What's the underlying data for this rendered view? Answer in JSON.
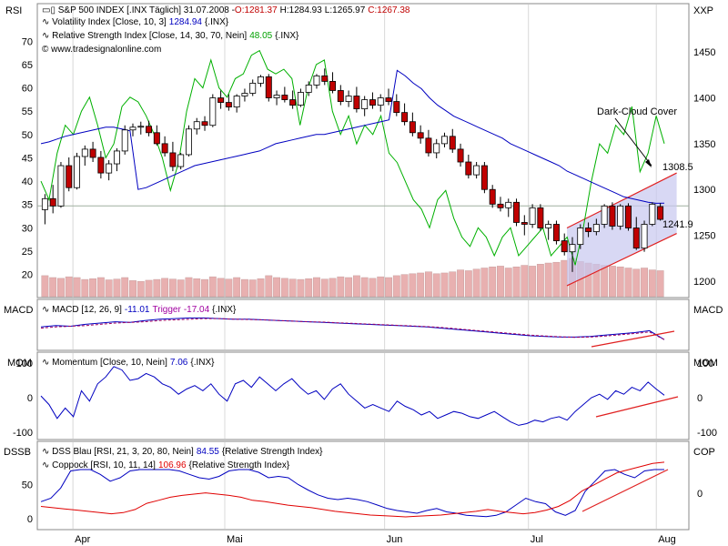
{
  "header": {
    "symbol": "S&P 500 INDEX [.INX  Täglich] 31.07.2008 -",
    "o": "O:1281.37",
    "h": "H:1284.93",
    "l": "L:1265.97",
    "c": "C:1267.38",
    "vol_label": "Volatility Index [Close, 10, 3]",
    "vol_value": "1284.94",
    "vol_suffix": "{.INX}",
    "rsi_label": "Relative Strength Index [Close, 14, 30, 70, Nein]",
    "rsi_value": "48.05",
    "rsi_suffix": "{.INX}",
    "website": "© www.tradesignalonline.com"
  },
  "panel_labels": {
    "main_left": "RSI",
    "main_right": "XXP",
    "macd_left": "MACD",
    "macd_right": "MACD",
    "mom_left": "MOM",
    "mom_right": "MOM",
    "dssb_left": "DSSB",
    "dssb_right": "COP"
  },
  "indicators": {
    "macd_label": "MACD [12, 26, 9]",
    "macd_value": "-11.01",
    "trigger_label": "Trigger",
    "trigger_value": "-17.04",
    "macd_suffix": "{.INX}",
    "mom_label": "Momentum [Close, 10, Nein]",
    "mom_value": "7.06",
    "mom_suffix": "{.INX}",
    "dss_label": "DSS Blau [RSI, 21, 3, 20, 80, Nein]",
    "dss_value": "84.55",
    "dss_suffix": "{Relative Strength Index}",
    "cop_label": "Coppock [RSI, 10, 11, 14]",
    "cop_value": "106.96",
    "cop_suffix": "{Relative Strength Index}"
  },
  "annotations": {
    "dark_cloud": "Dark-Cloud Cover",
    "upper_level": "1308.5",
    "lower_level": "1241.9"
  },
  "colors": {
    "up_candle": "#ffffff",
    "down_candle": "#c00000",
    "volatility": "#0000c0",
    "rsi": "#00b000",
    "volume": "#e8b0b0",
    "channel_fill": "#c8c8f0",
    "channel_line": "#e02020",
    "trendline": "#e02020",
    "dss": "#0000c0",
    "coppock": "#e00000"
  },
  "chart_data": {
    "type": "candlestick",
    "symbol": "S&P 500 INDEX [.INX  Täglich]",
    "x_tick_labels": [
      "Apr",
      "Mai",
      "Jun",
      "Jul",
      "Aug"
    ],
    "price_axis": {
      "ticks": [
        1200,
        1250,
        1300,
        1350,
        1400,
        1450
      ],
      "range": [
        1187,
        1477
      ]
    },
    "rsi_axis": {
      "ticks": [
        20,
        25,
        30,
        35,
        40,
        45,
        50,
        55,
        60,
        65,
        70
      ],
      "range": [
        16,
        73
      ]
    },
    "rsi_reference": 34.7,
    "candles": [
      {
        "o": 1278,
        "h": 1295,
        "l": 1262,
        "c": 1290
      },
      {
        "o": 1290,
        "h": 1305,
        "l": 1274,
        "c": 1282
      },
      {
        "o": 1282,
        "h": 1330,
        "l": 1280,
        "c": 1326
      },
      {
        "o": 1326,
        "h": 1335,
        "l": 1298,
        "c": 1302
      },
      {
        "o": 1302,
        "h": 1340,
        "l": 1300,
        "c": 1336
      },
      {
        "o": 1336,
        "h": 1348,
        "l": 1326,
        "c": 1344
      },
      {
        "o": 1344,
        "h": 1352,
        "l": 1330,
        "c": 1335
      },
      {
        "o": 1335,
        "h": 1342,
        "l": 1312,
        "c": 1318
      },
      {
        "o": 1318,
        "h": 1332,
        "l": 1310,
        "c": 1328
      },
      {
        "o": 1328,
        "h": 1345,
        "l": 1320,
        "c": 1342
      },
      {
        "o": 1342,
        "h": 1370,
        "l": 1338,
        "c": 1365
      },
      {
        "o": 1365,
        "h": 1372,
        "l": 1358,
        "c": 1368
      },
      {
        "o": 1368,
        "h": 1374,
        "l": 1360,
        "c": 1369
      },
      {
        "o": 1369,
        "h": 1375,
        "l": 1358,
        "c": 1362
      },
      {
        "o": 1362,
        "h": 1370,
        "l": 1348,
        "c": 1350
      },
      {
        "o": 1350,
        "h": 1358,
        "l": 1336,
        "c": 1340
      },
      {
        "o": 1340,
        "h": 1352,
        "l": 1320,
        "c": 1325
      },
      {
        "o": 1325,
        "h": 1340,
        "l": 1322,
        "c": 1338
      },
      {
        "o": 1338,
        "h": 1370,
        "l": 1336,
        "c": 1366
      },
      {
        "o": 1366,
        "h": 1378,
        "l": 1360,
        "c": 1374
      },
      {
        "o": 1374,
        "h": 1380,
        "l": 1364,
        "c": 1370
      },
      {
        "o": 1370,
        "h": 1404,
        "l": 1368,
        "c": 1400
      },
      {
        "o": 1400,
        "h": 1408,
        "l": 1388,
        "c": 1395
      },
      {
        "o": 1395,
        "h": 1404,
        "l": 1386,
        "c": 1390
      },
      {
        "o": 1390,
        "h": 1404,
        "l": 1384,
        "c": 1402
      },
      {
        "o": 1402,
        "h": 1410,
        "l": 1396,
        "c": 1405
      },
      {
        "o": 1405,
        "h": 1420,
        "l": 1402,
        "c": 1416
      },
      {
        "o": 1416,
        "h": 1425,
        "l": 1412,
        "c": 1423
      },
      {
        "o": 1423,
        "h": 1426,
        "l": 1396,
        "c": 1400
      },
      {
        "o": 1400,
        "h": 1408,
        "l": 1392,
        "c": 1403
      },
      {
        "o": 1403,
        "h": 1412,
        "l": 1395,
        "c": 1398
      },
      {
        "o": 1398,
        "h": 1408,
        "l": 1388,
        "c": 1392
      },
      {
        "o": 1392,
        "h": 1410,
        "l": 1390,
        "c": 1406
      },
      {
        "o": 1406,
        "h": 1418,
        "l": 1402,
        "c": 1414
      },
      {
        "o": 1414,
        "h": 1426,
        "l": 1410,
        "c": 1424
      },
      {
        "o": 1424,
        "h": 1432,
        "l": 1414,
        "c": 1418
      },
      {
        "o": 1418,
        "h": 1428,
        "l": 1405,
        "c": 1408
      },
      {
        "o": 1408,
        "h": 1414,
        "l": 1392,
        "c": 1396
      },
      {
        "o": 1396,
        "h": 1408,
        "l": 1390,
        "c": 1402
      },
      {
        "o": 1402,
        "h": 1412,
        "l": 1384,
        "c": 1388
      },
      {
        "o": 1388,
        "h": 1402,
        "l": 1380,
        "c": 1398
      },
      {
        "o": 1398,
        "h": 1406,
        "l": 1388,
        "c": 1392
      },
      {
        "o": 1392,
        "h": 1404,
        "l": 1385,
        "c": 1400
      },
      {
        "o": 1400,
        "h": 1410,
        "l": 1392,
        "c": 1396
      },
      {
        "o": 1396,
        "h": 1404,
        "l": 1380,
        "c": 1384
      },
      {
        "o": 1384,
        "h": 1394,
        "l": 1370,
        "c": 1374
      },
      {
        "o": 1374,
        "h": 1384,
        "l": 1358,
        "c": 1362
      },
      {
        "o": 1362,
        "h": 1370,
        "l": 1350,
        "c": 1356
      },
      {
        "o": 1356,
        "h": 1365,
        "l": 1336,
        "c": 1340
      },
      {
        "o": 1340,
        "h": 1355,
        "l": 1334,
        "c": 1350
      },
      {
        "o": 1350,
        "h": 1362,
        "l": 1346,
        "c": 1358
      },
      {
        "o": 1358,
        "h": 1366,
        "l": 1340,
        "c": 1344
      },
      {
        "o": 1344,
        "h": 1350,
        "l": 1325,
        "c": 1330
      },
      {
        "o": 1330,
        "h": 1338,
        "l": 1312,
        "c": 1316
      },
      {
        "o": 1316,
        "h": 1330,
        "l": 1312,
        "c": 1326
      },
      {
        "o": 1326,
        "h": 1330,
        "l": 1296,
        "c": 1300
      },
      {
        "o": 1300,
        "h": 1305,
        "l": 1280,
        "c": 1284
      },
      {
        "o": 1284,
        "h": 1292,
        "l": 1276,
        "c": 1280
      },
      {
        "o": 1280,
        "h": 1290,
        "l": 1270,
        "c": 1286
      },
      {
        "o": 1286,
        "h": 1290,
        "l": 1260,
        "c": 1264
      },
      {
        "o": 1264,
        "h": 1272,
        "l": 1250,
        "c": 1262
      },
      {
        "o": 1262,
        "h": 1284,
        "l": 1258,
        "c": 1280
      },
      {
        "o": 1280,
        "h": 1284,
        "l": 1255,
        "c": 1258
      },
      {
        "o": 1258,
        "h": 1266,
        "l": 1245,
        "c": 1262
      },
      {
        "o": 1262,
        "h": 1266,
        "l": 1240,
        "c": 1244
      },
      {
        "o": 1244,
        "h": 1252,
        "l": 1228,
        "c": 1232
      },
      {
        "o": 1232,
        "h": 1248,
        "l": 1210,
        "c": 1240
      },
      {
        "o": 1240,
        "h": 1262,
        "l": 1235,
        "c": 1258
      },
      {
        "o": 1258,
        "h": 1264,
        "l": 1248,
        "c": 1254
      },
      {
        "o": 1254,
        "h": 1268,
        "l": 1250,
        "c": 1262
      },
      {
        "o": 1262,
        "h": 1284,
        "l": 1258,
        "c": 1282
      },
      {
        "o": 1282,
        "h": 1286,
        "l": 1256,
        "c": 1260
      },
      {
        "o": 1260,
        "h": 1284,
        "l": 1256,
        "c": 1282
      },
      {
        "o": 1282,
        "h": 1285,
        "l": 1255,
        "c": 1258
      },
      {
        "o": 1258,
        "h": 1270,
        "l": 1234,
        "c": 1236
      },
      {
        "o": 1236,
        "h": 1266,
        "l": 1232,
        "c": 1262
      },
      {
        "o": 1262,
        "h": 1286,
        "l": 1260,
        "c": 1284
      },
      {
        "o": 1281.37,
        "h": 1284.93,
        "l": 1265.97,
        "c": 1267.38
      }
    ],
    "volume_note": "volume bars in main panel (relative heights)",
    "volume": [
      0.55,
      0.5,
      0.48,
      0.52,
      0.5,
      0.45,
      0.47,
      0.5,
      0.44,
      0.46,
      0.5,
      0.42,
      0.4,
      0.43,
      0.45,
      0.48,
      0.46,
      0.44,
      0.5,
      0.47,
      0.45,
      0.52,
      0.48,
      0.46,
      0.5,
      0.45,
      0.44,
      0.47,
      0.55,
      0.5,
      0.48,
      0.46,
      0.45,
      0.47,
      0.5,
      0.46,
      0.48,
      0.52,
      0.5,
      0.55,
      0.5,
      0.48,
      0.52,
      0.5,
      0.55,
      0.58,
      0.6,
      0.62,
      0.65,
      0.6,
      0.62,
      0.65,
      0.7,
      0.68,
      0.72,
      0.75,
      0.78,
      0.8,
      0.75,
      0.78,
      0.82,
      0.8,
      0.85,
      0.88,
      0.9,
      0.95,
      1.0,
      0.92,
      0.88,
      0.85,
      0.82,
      0.8,
      0.78,
      0.75,
      0.72,
      0.75,
      0.7,
      0.68
    ],
    "volatility_index": [
      1350,
      1352,
      1355,
      1358,
      1360,
      1362,
      1364,
      1366,
      1368,
      1368,
      1366,
      1364,
      1300,
      1302,
      1306,
      1310,
      1314,
      1318,
      1322,
      1326,
      1328,
      1330,
      1332,
      1334,
      1336,
      1338,
      1340,
      1342,
      1346,
      1350,
      1352,
      1354,
      1356,
      1358,
      1360,
      1360,
      1362,
      1364,
      1366,
      1368,
      1370,
      1372,
      1374,
      1376,
      1430,
      1424,
      1416,
      1410,
      1400,
      1392,
      1386,
      1380,
      1376,
      1372,
      1368,
      1364,
      1360,
      1356,
      1350,
      1346,
      1342,
      1338,
      1334,
      1330,
      1326,
      1320,
      1316,
      1312,
      1308,
      1304,
      1300,
      1296,
      1292,
      1290,
      1288,
      1286,
      1284.94,
      1285
    ],
    "rsi": [
      40,
      36,
      46,
      52,
      50,
      55,
      58,
      52,
      45,
      48,
      56,
      58,
      57,
      54,
      50,
      45,
      38,
      44,
      55,
      62,
      60,
      66,
      60,
      58,
      62,
      63,
      67,
      68,
      64,
      63,
      64,
      62,
      52,
      60,
      65,
      66,
      55,
      50,
      54,
      48,
      52,
      50,
      54,
      46,
      44,
      40,
      36,
      34,
      30,
      36,
      38,
      32,
      28,
      26,
      30,
      28,
      24,
      28,
      30,
      24,
      26,
      28,
      30,
      24,
      26,
      28,
      22,
      30,
      40,
      48,
      46,
      52,
      50,
      56,
      42,
      46,
      54,
      48.05
    ],
    "macd_panel": {
      "macd": [
        0.2,
        0.3,
        0.25,
        0.4,
        0.5,
        0.6,
        0.55,
        0.7,
        0.8,
        0.85,
        0.9,
        0.9,
        0.85,
        0.8,
        0.8,
        0.75,
        0.7,
        0.65,
        0.6,
        0.55,
        0.5,
        0.45,
        0.4,
        0.35,
        0.3,
        0.25,
        0.2,
        0.1,
        0.0,
        -0.1,
        -0.2,
        -0.3,
        -0.4,
        -0.5,
        -0.55,
        -0.6,
        -0.6,
        -0.55,
        -0.45,
        -0.35,
        -0.25,
        -0.1,
        -11.01
      ],
      "trigger": [
        0.1,
        0.2,
        0.25,
        0.3,
        0.4,
        0.5,
        0.55,
        0.6,
        0.7,
        0.75,
        0.8,
        0.85,
        0.85,
        0.8,
        0.78,
        0.75,
        0.7,
        0.65,
        0.6,
        0.58,
        0.52,
        0.48,
        0.42,
        0.38,
        0.32,
        0.28,
        0.22,
        0.15,
        0.05,
        -0.05,
        -0.15,
        -0.25,
        -0.35,
        -0.45,
        -0.52,
        -0.58,
        -0.62,
        -0.6,
        -0.52,
        -0.42,
        -0.32,
        -0.2,
        -17.04
      ]
    },
    "momentum_axis": {
      "ticks": [
        -100,
        0,
        100
      ]
    },
    "momentum": [
      5,
      -20,
      -60,
      -30,
      -55,
      20,
      -10,
      40,
      60,
      90,
      80,
      50,
      55,
      70,
      60,
      40,
      30,
      10,
      25,
      35,
      20,
      40,
      10,
      -10,
      40,
      50,
      30,
      60,
      40,
      20,
      40,
      55,
      30,
      10,
      20,
      -5,
      25,
      40,
      10,
      -10,
      -30,
      -20,
      -30,
      -40,
      -10,
      -25,
      -35,
      -50,
      -40,
      -60,
      -50,
      -40,
      -45,
      -55,
      -60,
      -50,
      -40,
      -55,
      -70,
      -80,
      -75,
      -65,
      -70,
      -60,
      -55,
      -65,
      -40,
      -20,
      0,
      10,
      -5,
      20,
      10,
      30,
      20,
      45,
      25,
      7.06
    ],
    "dssb_axis": {
      "ticks": [
        0,
        50
      ]
    },
    "dss": [
      25,
      30,
      45,
      70,
      80,
      78,
      65,
      55,
      60,
      70,
      80,
      82,
      78,
      72,
      70,
      65,
      60,
      58,
      62,
      70,
      75,
      80,
      68,
      60,
      62,
      60,
      50,
      42,
      35,
      30,
      28,
      30,
      28,
      25,
      20,
      15,
      12,
      10,
      8,
      12,
      15,
      10,
      8,
      5,
      4,
      3,
      5,
      10,
      20,
      30,
      25,
      22,
      10,
      5,
      12,
      40,
      55,
      70,
      72,
      65,
      60,
      70,
      80,
      84.55
    ],
    "coppock": [
      20,
      18,
      16,
      14,
      12,
      10,
      8,
      10,
      15,
      25,
      30,
      35,
      38,
      40,
      42,
      40,
      38,
      35,
      30,
      28,
      25,
      22,
      20,
      18,
      15,
      12,
      10,
      8,
      6,
      5,
      4,
      3,
      4,
      5,
      6,
      8,
      10,
      12,
      15,
      12,
      10,
      8,
      10,
      14,
      20,
      30,
      45,
      55,
      65,
      75,
      80,
      85,
      90,
      106.96
    ]
  }
}
